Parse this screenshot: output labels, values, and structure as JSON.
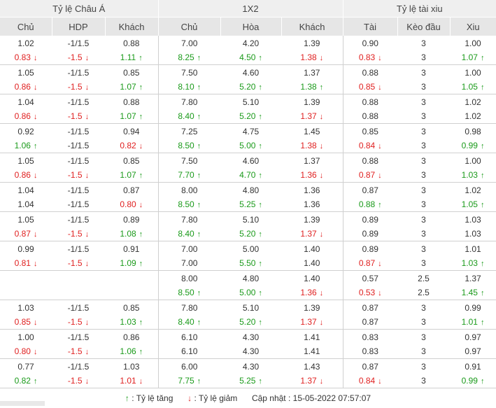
{
  "header": {
    "groups": [
      "Tỷ lệ Châu Á",
      "1X2",
      "Tỷ lệ tài xiu"
    ],
    "columns": [
      "Chủ",
      "HDP",
      "Khách",
      "Chủ",
      "Hòa",
      "Khách",
      "Tài",
      "Kèo đầu",
      "Xiu"
    ]
  },
  "rows": [
    [
      [
        "1.02",
        "0.83",
        "down"
      ],
      [
        "-1/1.5",
        "-1.5",
        "down"
      ],
      [
        "0.88",
        "1.11",
        "up"
      ],
      [
        "7.00",
        "8.25",
        "up"
      ],
      [
        "4.20",
        "4.50",
        "up"
      ],
      [
        "1.39",
        "1.38",
        "down"
      ],
      [
        "0.90",
        "0.83",
        "down"
      ],
      [
        "3",
        "3",
        ""
      ],
      [
        "1.00",
        "1.07",
        "up"
      ]
    ],
    [
      [
        "1.05",
        "0.86",
        "down"
      ],
      [
        "-1/1.5",
        "-1.5",
        "down"
      ],
      [
        "0.85",
        "1.07",
        "up"
      ],
      [
        "7.50",
        "8.10",
        "up"
      ],
      [
        "4.60",
        "5.20",
        "up"
      ],
      [
        "1.37",
        "1.38",
        "up"
      ],
      [
        "0.88",
        "0.85",
        "down"
      ],
      [
        "3",
        "3",
        ""
      ],
      [
        "1.00",
        "1.05",
        "up"
      ]
    ],
    [
      [
        "1.04",
        "0.86",
        "down"
      ],
      [
        "-1/1.5",
        "-1.5",
        "down"
      ],
      [
        "0.88",
        "1.07",
        "up"
      ],
      [
        "7.80",
        "8.40",
        "up"
      ],
      [
        "5.10",
        "5.20",
        "up"
      ],
      [
        "1.39",
        "1.37",
        "down"
      ],
      [
        "0.88",
        "0.88",
        ""
      ],
      [
        "3",
        "3",
        ""
      ],
      [
        "1.02",
        "1.02",
        ""
      ]
    ],
    [
      [
        "0.92",
        "1.06",
        "up"
      ],
      [
        "-1/1.5",
        "-1/1.5",
        ""
      ],
      [
        "0.94",
        "0.82",
        "down"
      ],
      [
        "7.25",
        "8.50",
        "up"
      ],
      [
        "4.75",
        "5.00",
        "up"
      ],
      [
        "1.45",
        "1.38",
        "down"
      ],
      [
        "0.85",
        "0.84",
        "down"
      ],
      [
        "3",
        "3",
        ""
      ],
      [
        "0.98",
        "0.99",
        "up"
      ]
    ],
    [
      [
        "1.05",
        "0.86",
        "down"
      ],
      [
        "-1/1.5",
        "-1.5",
        "down"
      ],
      [
        "0.85",
        "1.07",
        "up"
      ],
      [
        "7.50",
        "7.70",
        "up"
      ],
      [
        "4.60",
        "4.70",
        "up"
      ],
      [
        "1.37",
        "1.36",
        "down"
      ],
      [
        "0.88",
        "0.87",
        "down"
      ],
      [
        "3",
        "3",
        ""
      ],
      [
        "1.00",
        "1.03",
        "up"
      ]
    ],
    [
      [
        "1.04",
        "1.04",
        ""
      ],
      [
        "-1/1.5",
        "-1/1.5",
        ""
      ],
      [
        "0.87",
        "0.80",
        "down"
      ],
      [
        "8.00",
        "8.50",
        "up"
      ],
      [
        "4.80",
        "5.25",
        "up"
      ],
      [
        "1.36",
        "1.36",
        ""
      ],
      [
        "0.87",
        "0.88",
        "up"
      ],
      [
        "3",
        "3",
        ""
      ],
      [
        "1.02",
        "1.05",
        "up"
      ]
    ],
    [
      [
        "1.05",
        "0.87",
        "down"
      ],
      [
        "-1/1.5",
        "-1.5",
        "down"
      ],
      [
        "0.89",
        "1.08",
        "up"
      ],
      [
        "7.80",
        "8.40",
        "up"
      ],
      [
        "5.10",
        "5.20",
        "up"
      ],
      [
        "1.39",
        "1.37",
        "down"
      ],
      [
        "0.89",
        "0.89",
        ""
      ],
      [
        "3",
        "3",
        ""
      ],
      [
        "1.03",
        "1.03",
        ""
      ]
    ],
    [
      [
        "0.99",
        "0.81",
        "down"
      ],
      [
        "-1/1.5",
        "-1.5",
        "down"
      ],
      [
        "0.91",
        "1.09",
        "up"
      ],
      [
        "7.00",
        "7.00",
        ""
      ],
      [
        "5.00",
        "5.50",
        "up"
      ],
      [
        "1.40",
        "1.40",
        ""
      ],
      [
        "0.89",
        "0.87",
        "down"
      ],
      [
        "3",
        "3",
        ""
      ],
      [
        "1.01",
        "1.03",
        "up"
      ]
    ],
    [
      [
        "",
        "",
        ""
      ],
      [
        "",
        "",
        ""
      ],
      [
        "",
        "",
        ""
      ],
      [
        "8.00",
        "8.50",
        "up"
      ],
      [
        "4.80",
        "5.00",
        "up"
      ],
      [
        "1.40",
        "1.36",
        "down"
      ],
      [
        "0.57",
        "0.53",
        "down"
      ],
      [
        "2.5",
        "2.5",
        ""
      ],
      [
        "1.37",
        "1.45",
        "up"
      ]
    ],
    [
      [
        "1.03",
        "0.85",
        "down"
      ],
      [
        "-1/1.5",
        "-1.5",
        "down"
      ],
      [
        "0.85",
        "1.03",
        "up"
      ],
      [
        "7.80",
        "8.40",
        "up"
      ],
      [
        "5.10",
        "5.20",
        "up"
      ],
      [
        "1.39",
        "1.37",
        "down"
      ],
      [
        "0.87",
        "0.87",
        ""
      ],
      [
        "3",
        "3",
        ""
      ],
      [
        "0.99",
        "1.01",
        "up"
      ]
    ],
    [
      [
        "1.00",
        "0.80",
        "down"
      ],
      [
        "-1/1.5",
        "-1.5",
        "down"
      ],
      [
        "0.86",
        "1.06",
        "up"
      ],
      [
        "6.10",
        "6.10",
        ""
      ],
      [
        "4.30",
        "4.30",
        ""
      ],
      [
        "1.41",
        "1.41",
        ""
      ],
      [
        "0.83",
        "0.83",
        ""
      ],
      [
        "3",
        "3",
        ""
      ],
      [
        "0.97",
        "0.97",
        ""
      ]
    ],
    [
      [
        "0.77",
        "0.82",
        "up"
      ],
      [
        "-1/1.5",
        "-1.5",
        "down"
      ],
      [
        "1.03",
        "1.01",
        "down"
      ],
      [
        "6.00",
        "7.75",
        "up"
      ],
      [
        "4.30",
        "5.25",
        "up"
      ],
      [
        "1.43",
        "1.37",
        "down"
      ],
      [
        "0.87",
        "0.84",
        "down"
      ],
      [
        "3",
        "3",
        ""
      ],
      [
        "0.91",
        "0.99",
        "up"
      ]
    ]
  ],
  "legend": {
    "up_label": ": Tỷ lệ tăng",
    "down_label": ": Tỷ lệ giảm",
    "updated_label": "Cập nhật : 15-05-2022 07:57:07"
  },
  "icons": {
    "up": "arrow-up-icon",
    "down": "arrow-down-icon"
  },
  "colors": {
    "up": "#1a9a1a",
    "down": "#e02020",
    "header_bg": "#efefef"
  }
}
